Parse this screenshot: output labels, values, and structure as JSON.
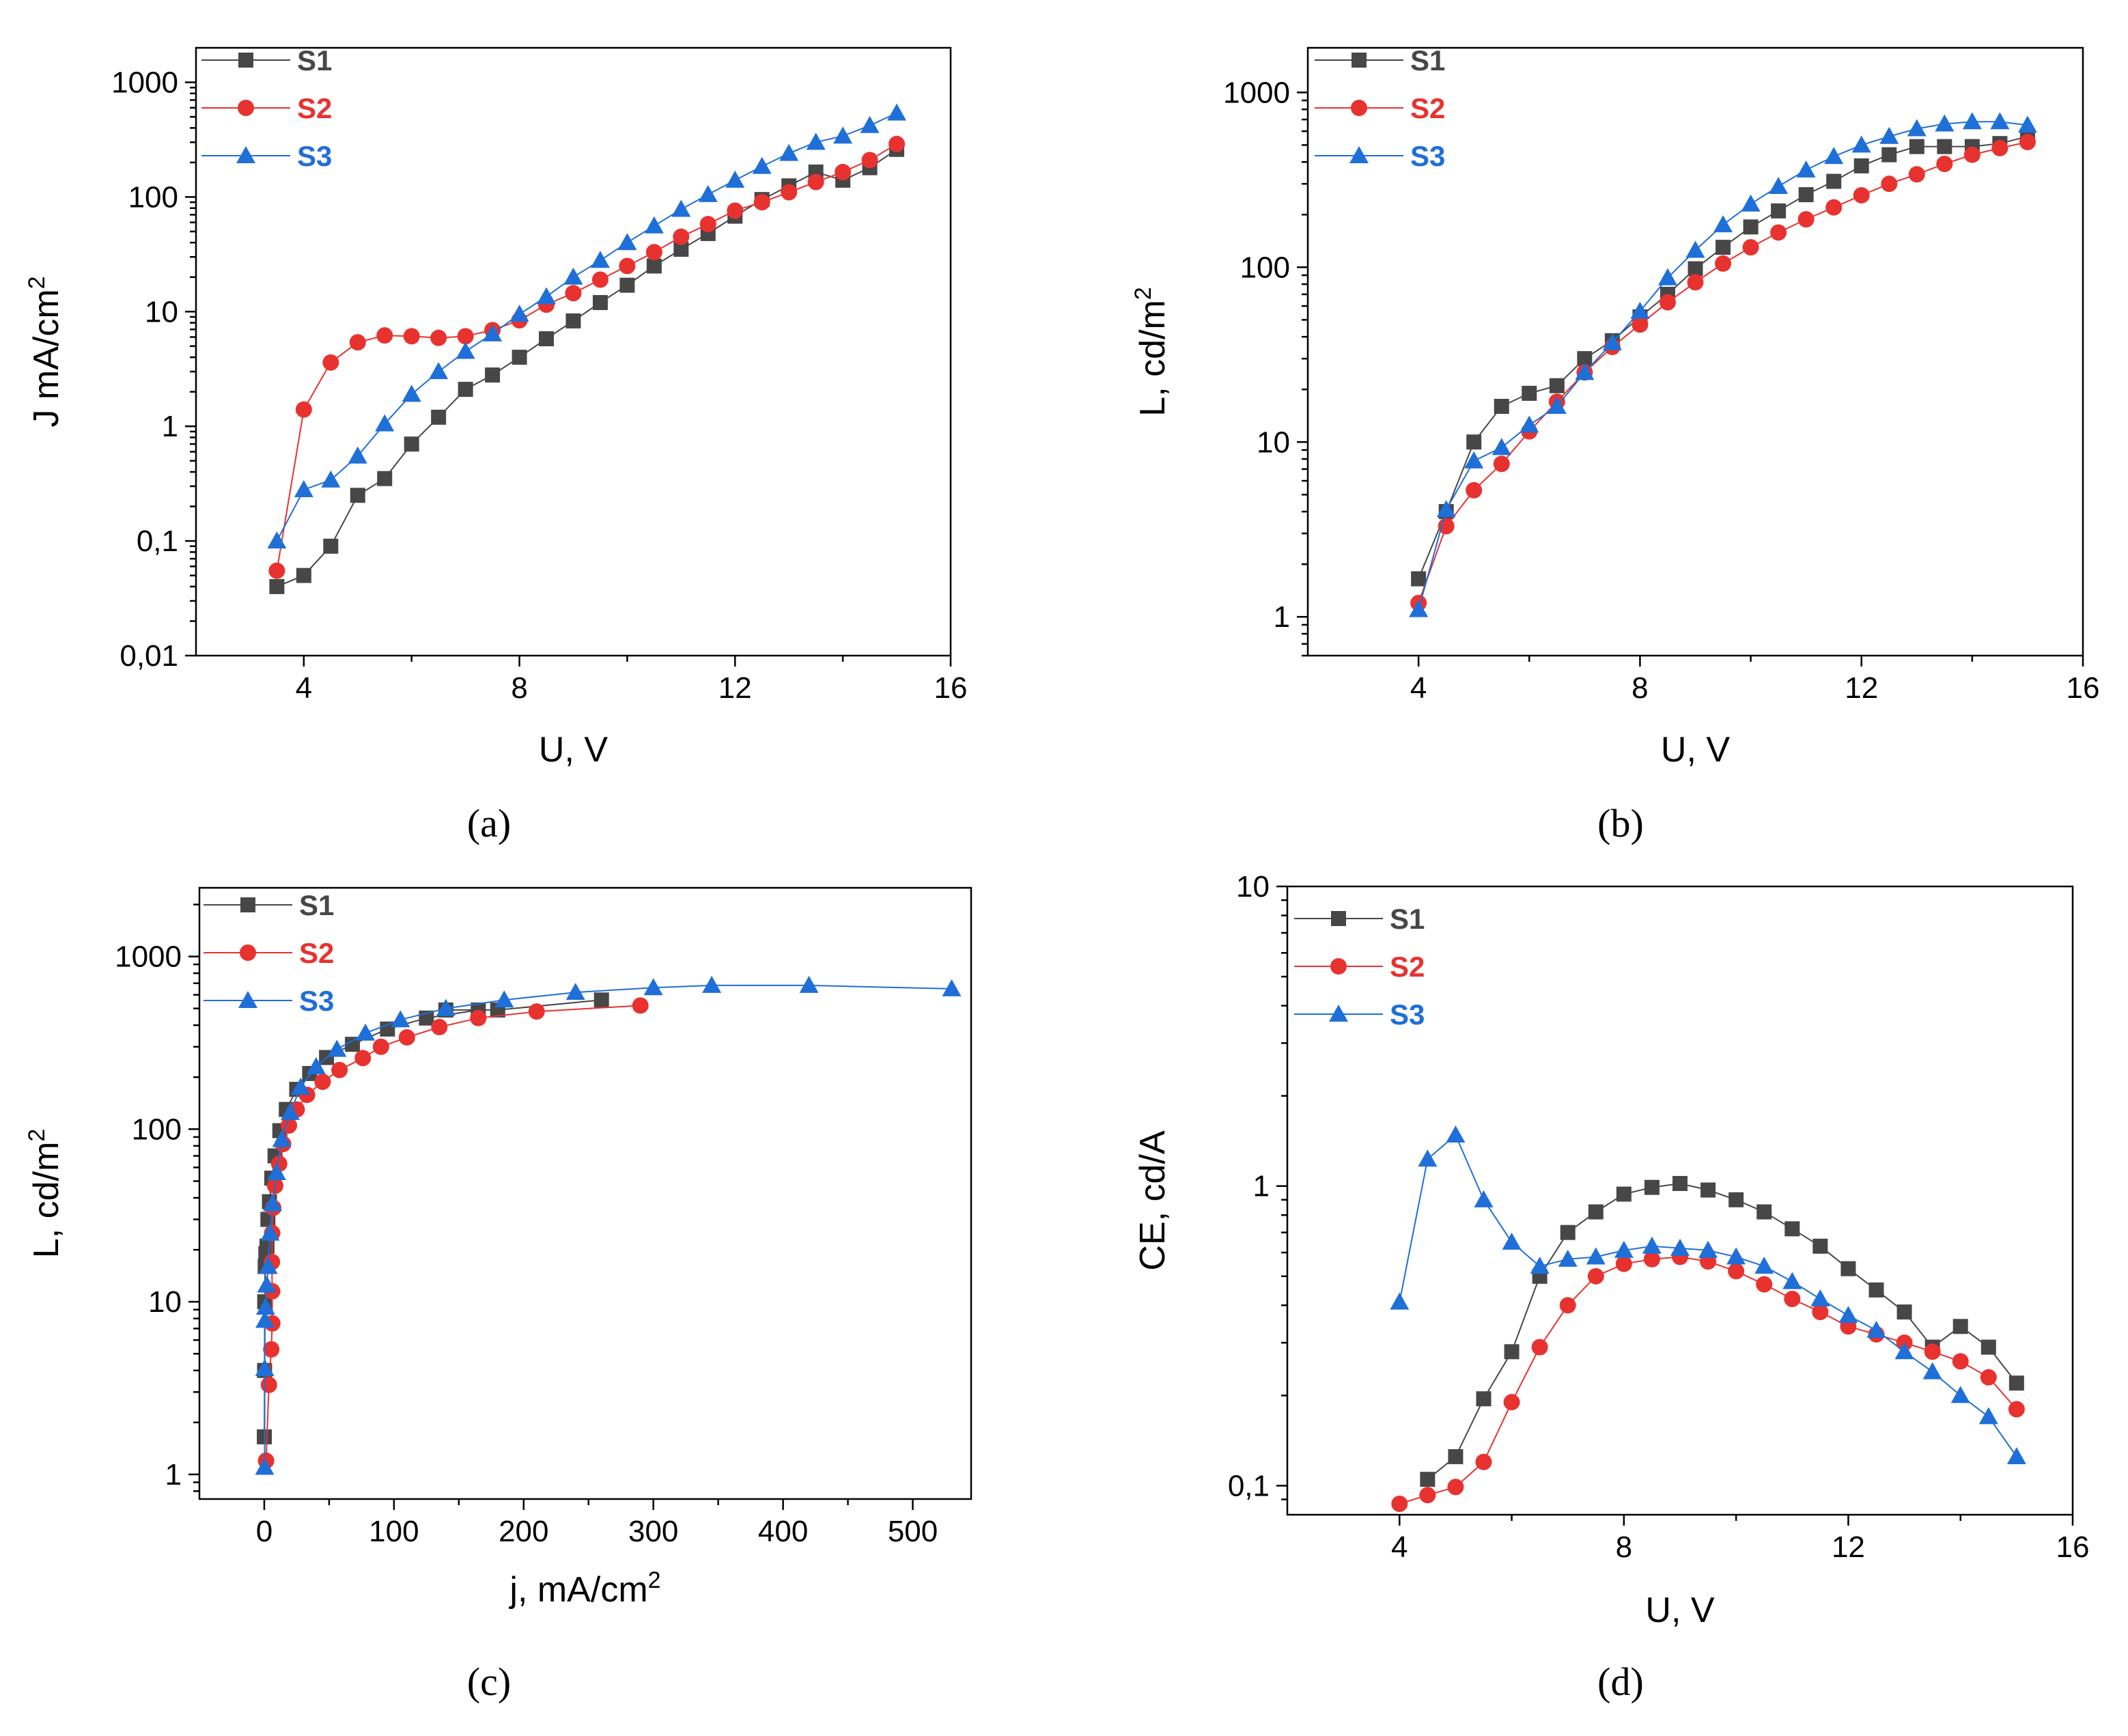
{
  "figure": {
    "panel_labels": [
      "(a)",
      "(b)",
      "(c)",
      "(d)"
    ]
  },
  "chart_data": [
    {
      "id": "a",
      "type": "line",
      "yscale": "log",
      "xlabel": "U, V",
      "ylabel": "J mA/cm2",
      "ylabel_parts": {
        "main": "J mA/cm",
        "sup": "2"
      },
      "xlim": [
        2,
        16
      ],
      "ylim": [
        0.01,
        2000
      ],
      "xticks": [
        4,
        8,
        12,
        16
      ],
      "xtick_labels": [
        "4",
        "8",
        "12",
        "16"
      ],
      "yticks": [
        0.01,
        0.1,
        1,
        10,
        100,
        1000
      ],
      "ytick_labels": [
        "0,01",
        "0,1",
        "1",
        "10",
        "100",
        "1000"
      ],
      "legend": [
        "S1",
        "S2",
        "S3"
      ],
      "series": [
        {
          "name": "S1",
          "color": "#474747",
          "marker": "square",
          "x": [
            3.5,
            4,
            4.5,
            5,
            5.5,
            6,
            6.5,
            7,
            7.5,
            8,
            8.5,
            9,
            9.5,
            10,
            10.5,
            11,
            11.5,
            12,
            12.5,
            13,
            13.5,
            14,
            14.5,
            15
          ],
          "y": [
            0.04,
            0.05,
            0.09,
            0.25,
            0.35,
            0.7,
            1.2,
            2.1,
            2.8,
            4,
            5.8,
            8.3,
            12,
            17,
            25,
            35,
            48,
            68,
            95,
            125,
            165,
            140,
            180,
            260
          ]
        },
        {
          "name": "S2",
          "color": "#e8322f",
          "marker": "circle",
          "x": [
            3.5,
            4,
            4.5,
            5,
            5.5,
            6,
            6.5,
            7,
            7.5,
            8,
            8.5,
            9,
            9.5,
            10,
            10.5,
            11,
            11.5,
            12,
            12.5,
            13,
            13.5,
            14,
            14.5,
            15
          ],
          "y": [
            0.055,
            1.4,
            3.6,
            5.4,
            6.2,
            6.1,
            5.9,
            6.1,
            6.9,
            8.4,
            11.5,
            14.5,
            19,
            25,
            33,
            45,
            58,
            76,
            90,
            110,
            135,
            165,
            210,
            290
          ]
        },
        {
          "name": "S3",
          "color": "#1f6fd8",
          "marker": "triangle",
          "x": [
            3.5,
            4,
            4.5,
            5,
            5.5,
            6,
            6.5,
            7,
            7.5,
            8,
            8.5,
            9,
            9.5,
            10,
            10.5,
            11,
            11.5,
            12,
            12.5,
            13,
            13.5,
            14,
            14.5,
            15
          ],
          "y": [
            0.1,
            0.28,
            0.34,
            0.55,
            1.05,
            1.9,
            3,
            4.5,
            6.4,
            9.5,
            13.5,
            20,
            28,
            40,
            56,
            78,
            105,
            140,
            185,
            240,
            300,
            340,
            420,
            540
          ]
        }
      ]
    },
    {
      "id": "b",
      "type": "line",
      "yscale": "log",
      "xlabel": "U, V",
      "ylabel": "L, cd/m2",
      "ylabel_parts": {
        "main": "L, cd/m",
        "sup": "2"
      },
      "xlim": [
        2,
        16
      ],
      "ylim": [
        0.6,
        1800
      ],
      "xticks": [
        4,
        8,
        12,
        16
      ],
      "xtick_labels": [
        "4",
        "8",
        "12",
        "16"
      ],
      "yticks": [
        1,
        10,
        100,
        1000
      ],
      "ytick_labels": [
        "1",
        "10",
        "100",
        "1000"
      ],
      "legend": [
        "S1",
        "S2",
        "S3"
      ],
      "series": [
        {
          "name": "S1",
          "color": "#474747",
          "marker": "square",
          "x": [
            4,
            4.5,
            5,
            5.5,
            6,
            6.5,
            7,
            7.5,
            8,
            8.5,
            9,
            9.5,
            10,
            10.5,
            11,
            11.5,
            12,
            12.5,
            13,
            13.5,
            14,
            14.5,
            15
          ],
          "y": [
            1.65,
            4,
            10,
            16,
            19,
            21,
            30,
            38,
            52,
            70,
            98,
            130,
            170,
            210,
            260,
            310,
            380,
            440,
            490,
            490,
            490,
            510,
            560
          ]
        },
        {
          "name": "S2",
          "color": "#e8322f",
          "marker": "circle",
          "x": [
            4,
            4.5,
            5,
            5.5,
            6,
            6.5,
            7,
            7.5,
            8,
            8.5,
            9,
            9.5,
            10,
            10.5,
            11,
            11.5,
            12,
            12.5,
            13,
            13.5,
            14,
            14.5,
            15
          ],
          "y": [
            1.2,
            3.3,
            5.3,
            7.5,
            11.5,
            17,
            25,
            35,
            47,
            63,
            82,
            105,
            130,
            158,
            188,
            220,
            258,
            300,
            340,
            390,
            440,
            480,
            520
          ]
        },
        {
          "name": "S3",
          "color": "#1f6fd8",
          "marker": "triangle",
          "x": [
            4,
            4.5,
            5,
            5.5,
            6,
            6.5,
            7,
            7.5,
            8,
            8.5,
            9,
            9.5,
            10,
            10.5,
            11,
            11.5,
            12,
            12.5,
            13,
            13.5,
            14,
            14.5,
            15
          ],
          "y": [
            1.1,
            4.1,
            7.8,
            9.3,
            12.5,
            16,
            25,
            37,
            56,
            87,
            125,
            175,
            230,
            290,
            360,
            430,
            500,
            560,
            620,
            660,
            680,
            680,
            650
          ]
        }
      ]
    },
    {
      "id": "c",
      "type": "line",
      "yscale": "log",
      "xlabel": "j, mA/cm2",
      "xlabel_parts": {
        "main": "j, mA/cm",
        "sup": "2"
      },
      "ylabel": "L, cd/m2",
      "ylabel_parts": {
        "main": "L, cd/m",
        "sup": "2"
      },
      "xlim": [
        -50,
        545
      ],
      "ylim": [
        0.72,
        2500
      ],
      "xticks": [
        0,
        100,
        200,
        300,
        400,
        500
      ],
      "xtick_labels": [
        "0",
        "100",
        "200",
        "300",
        "400",
        "500"
      ],
      "yticks": [
        1,
        10,
        100,
        1000
      ],
      "ytick_labels": [
        "1",
        "10",
        "100",
        "1000"
      ],
      "legend": [
        "S1",
        "S2",
        "S3"
      ],
      "series": [
        {
          "name": "S1",
          "color": "#474747",
          "marker": "square",
          "x": [
            0.05,
            0.25,
            0.35,
            0.7,
            1.2,
            2.1,
            2.8,
            4,
            5.8,
            8.3,
            12,
            17,
            25,
            35,
            48,
            68,
            95,
            125,
            165,
            140,
            180,
            260
          ],
          "y": [
            1.65,
            4,
            10,
            16,
            19,
            21,
            30,
            38,
            52,
            70,
            98,
            130,
            170,
            210,
            260,
            310,
            380,
            440,
            490,
            490,
            490,
            560
          ]
        },
        {
          "name": "S2",
          "color": "#e8322f",
          "marker": "circle",
          "x": [
            1.4,
            3.6,
            5.4,
            6.2,
            6.1,
            5.9,
            6.1,
            6.9,
            8.4,
            11.5,
            14.5,
            19,
            25,
            33,
            45,
            58,
            76,
            90,
            110,
            135,
            165,
            210,
            290
          ],
          "y": [
            1.2,
            3.3,
            5.3,
            7.5,
            11.5,
            17,
            25,
            35,
            47,
            63,
            82,
            105,
            130,
            158,
            188,
            220,
            258,
            300,
            340,
            390,
            440,
            480,
            520
          ]
        },
        {
          "name": "S3",
          "color": "#1f6fd8",
          "marker": "triangle",
          "x": [
            0.28,
            0.34,
            0.55,
            1.05,
            1.9,
            3,
            4.5,
            6.4,
            9.5,
            13.5,
            20,
            28,
            40,
            56,
            78,
            105,
            140,
            185,
            240,
            300,
            345,
            420,
            530
          ],
          "y": [
            1.1,
            4.1,
            7.8,
            9.3,
            12.5,
            16,
            25,
            37,
            56,
            87,
            125,
            175,
            230,
            290,
            360,
            430,
            500,
            560,
            620,
            660,
            680,
            680,
            650
          ]
        }
      ]
    },
    {
      "id": "d",
      "type": "line",
      "yscale": "log",
      "xlabel": "U, V",
      "ylabel": "CE, cd/A",
      "xlim": [
        2,
        16
      ],
      "ylim": [
        0.08,
        10
      ],
      "xticks": [
        4,
        8,
        12,
        16
      ],
      "xtick_labels": [
        "4",
        "8",
        "12",
        "16"
      ],
      "yticks": [
        0.1,
        1,
        10
      ],
      "ytick_labels": [
        "0,1",
        "1",
        "10"
      ],
      "legend": [
        "S1",
        "S2",
        "S3"
      ],
      "series": [
        {
          "name": "S1",
          "color": "#474747",
          "marker": "square",
          "x": [
            4.5,
            5,
            5.5,
            6,
            6.5,
            7,
            7.5,
            8,
            8.5,
            9,
            9.5,
            10,
            10.5,
            11,
            11.5,
            12,
            12.5,
            13,
            13.5,
            14,
            14.5,
            15
          ],
          "y": [
            0.105,
            0.125,
            0.195,
            0.28,
            0.5,
            0.7,
            0.82,
            0.94,
            0.99,
            1.02,
            0.97,
            0.9,
            0.82,
            0.72,
            0.63,
            0.53,
            0.45,
            0.38,
            0.29,
            0.34,
            0.29,
            0.22
          ]
        },
        {
          "name": "S2",
          "color": "#e8322f",
          "marker": "circle",
          "x": [
            4,
            4.5,
            5,
            5.5,
            6,
            6.5,
            7,
            7.5,
            8,
            8.5,
            9,
            9.5,
            10,
            10.5,
            11,
            11.5,
            12,
            12.5,
            13,
            13.5,
            14,
            14.5,
            15
          ],
          "y": [
            0.087,
            0.093,
            0.099,
            0.12,
            0.19,
            0.29,
            0.4,
            0.5,
            0.55,
            0.57,
            0.58,
            0.56,
            0.52,
            0.47,
            0.42,
            0.38,
            0.34,
            0.32,
            0.3,
            0.28,
            0.26,
            0.23,
            0.18
          ]
        },
        {
          "name": "S3",
          "color": "#1f6fd8",
          "marker": "triangle",
          "x": [
            4,
            4.5,
            5,
            5.5,
            6,
            6.5,
            7,
            7.5,
            8,
            8.5,
            9,
            9.5,
            10,
            10.5,
            11,
            11.5,
            12,
            12.5,
            13,
            13.5,
            14,
            14.5,
            15
          ],
          "y": [
            0.41,
            1.23,
            1.48,
            0.9,
            0.65,
            0.54,
            0.57,
            0.58,
            0.61,
            0.63,
            0.62,
            0.61,
            0.58,
            0.54,
            0.48,
            0.42,
            0.37,
            0.33,
            0.28,
            0.24,
            0.2,
            0.17,
            0.125
          ]
        }
      ]
    }
  ]
}
